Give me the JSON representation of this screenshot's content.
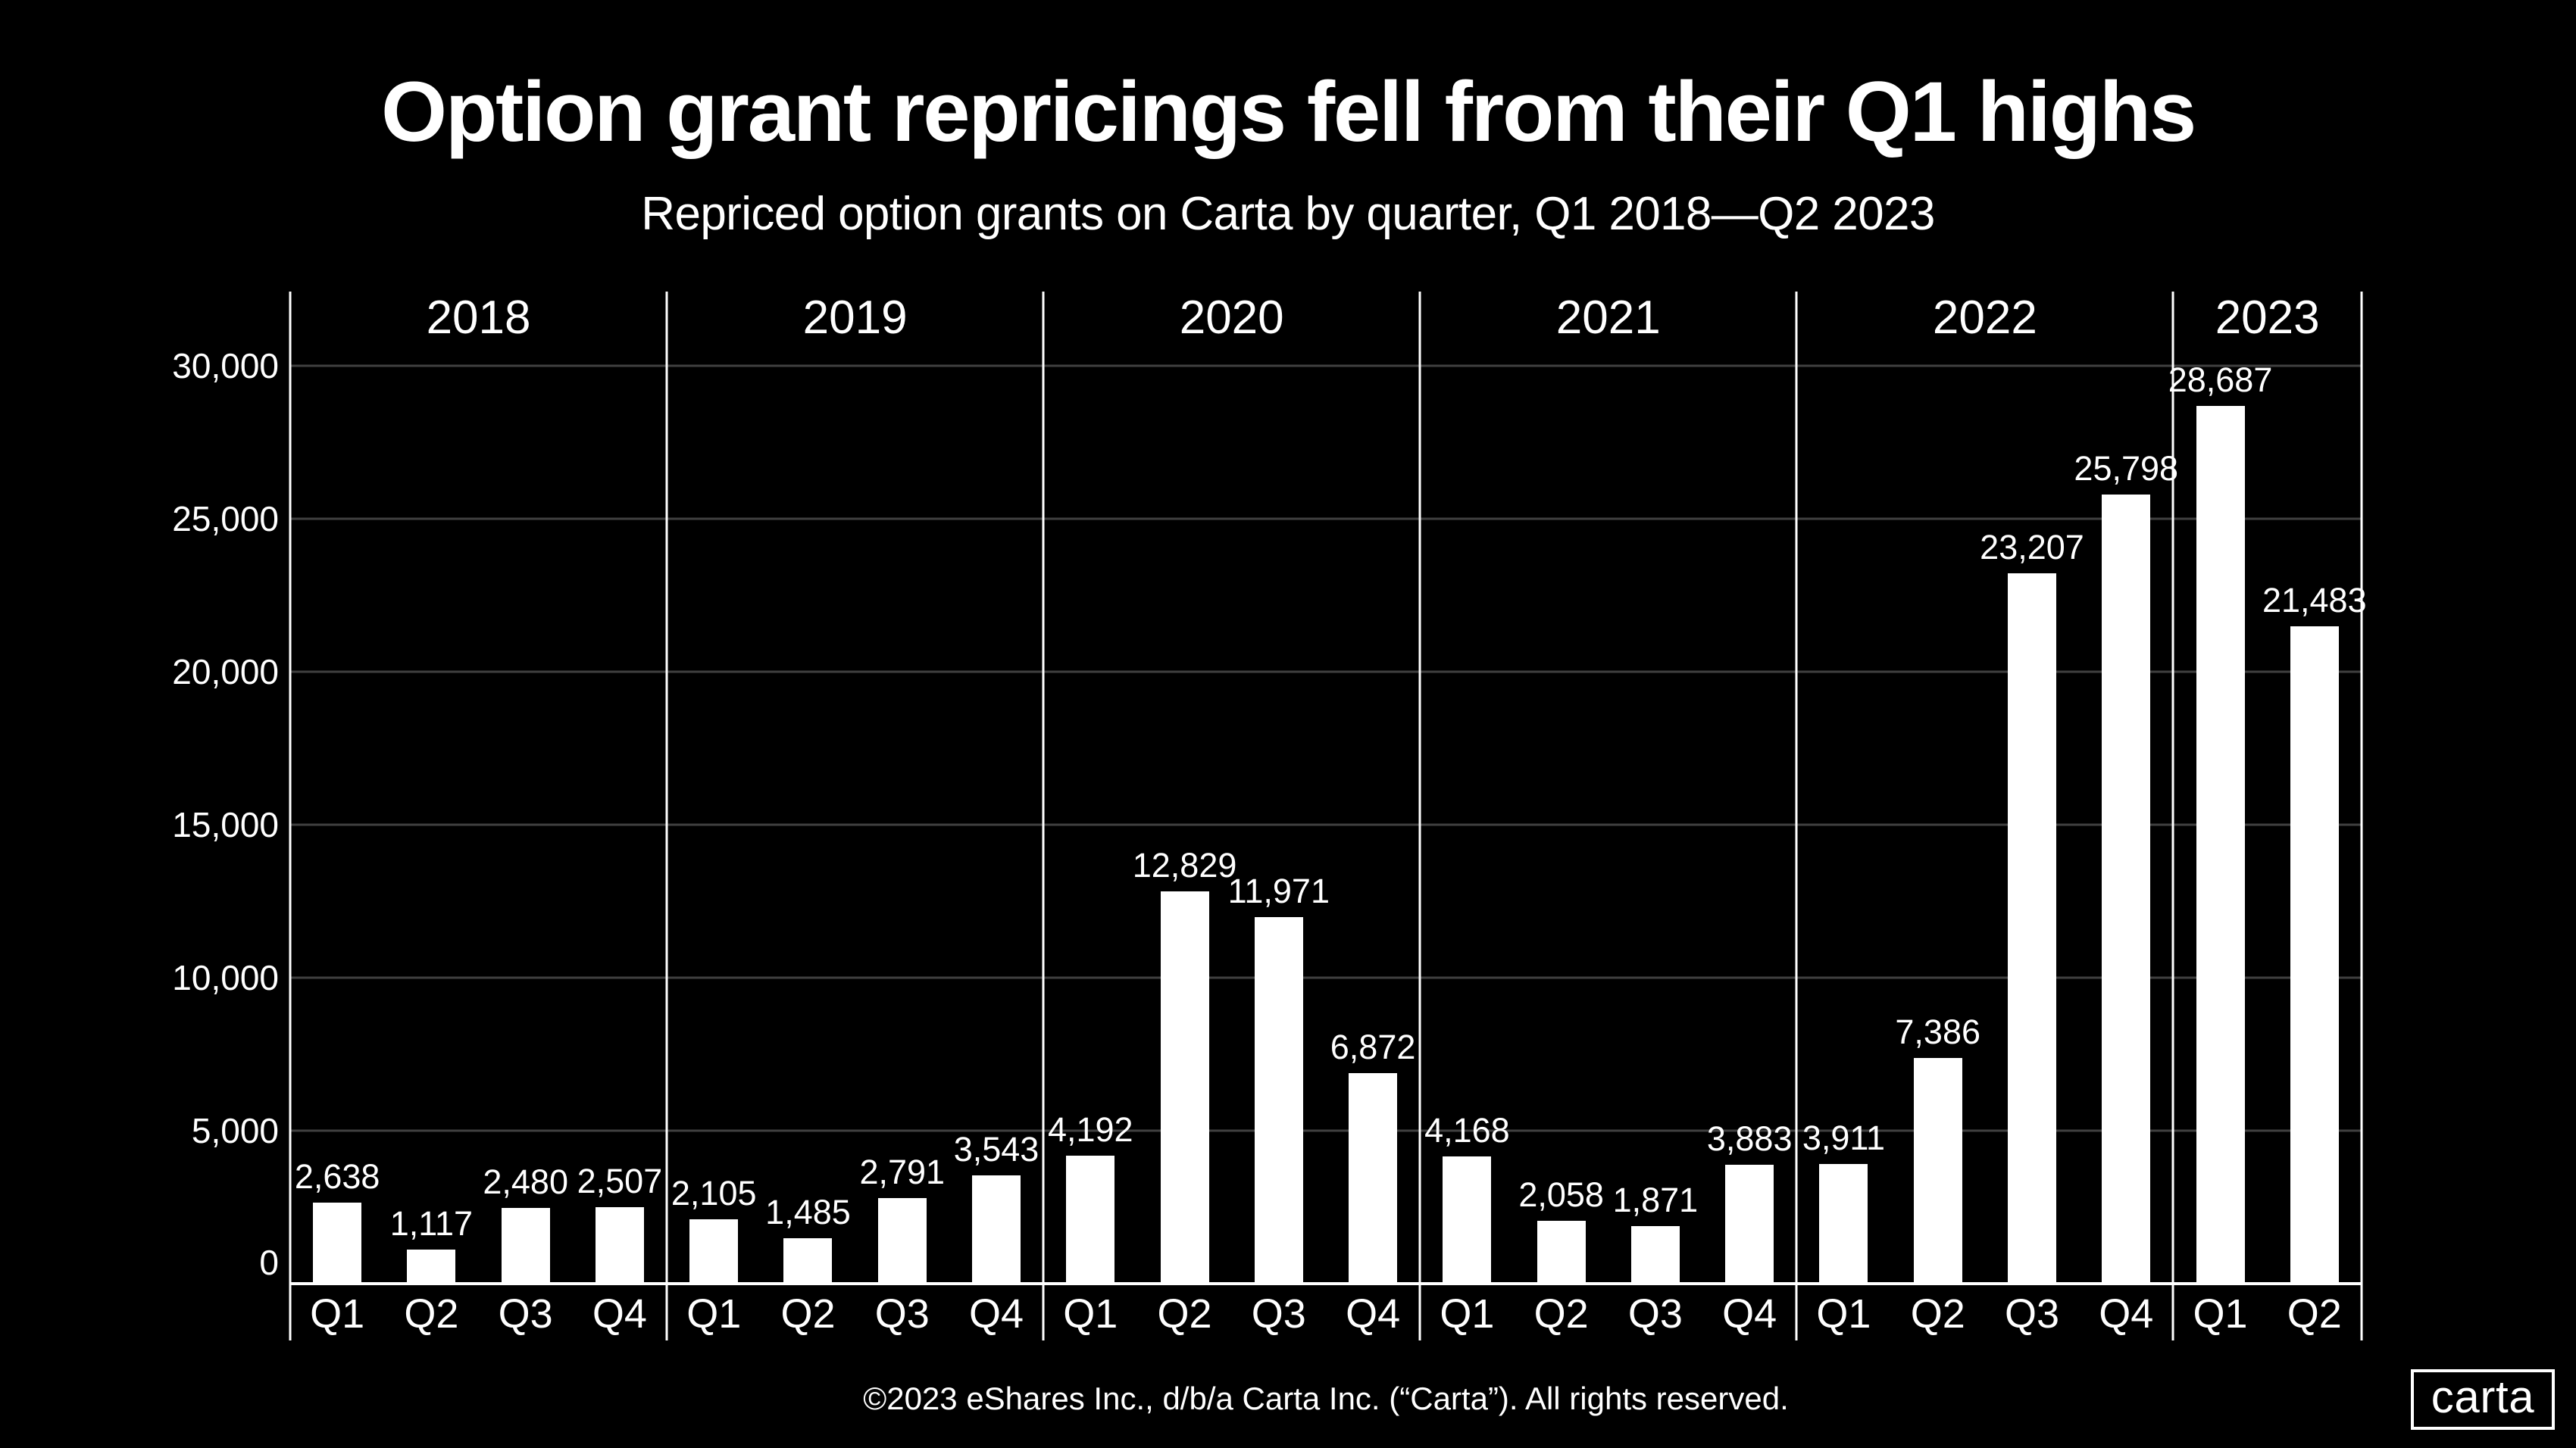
{
  "footer": {
    "text": "©2023 eShares Inc., d/b/a Carta Inc. (“Carta”). All rights reserved."
  },
  "logo": {
    "text": "carta"
  },
  "colors": {
    "background": "#000000",
    "bar": "#ffffff",
    "text": "#ffffff",
    "gridline": "#404040",
    "axis_line": "#ffffff"
  },
  "chart_data": {
    "type": "bar",
    "title": "Option grant repricings fell from their Q1 highs",
    "subtitle": "Repriced option grants on Carta by quarter, Q1 2018—Q2 2023",
    "ylabel": "",
    "xlabel": "",
    "ylim": [
      0,
      32500
    ],
    "grid": true,
    "legend": false,
    "y_axis": {
      "ticks": [
        0,
        5000,
        10000,
        15000,
        20000,
        25000,
        30000
      ],
      "tick_labels": [
        "0",
        "5,000",
        "10,000",
        "15,000",
        "20,000",
        "25,000",
        "30,000"
      ]
    },
    "groups": [
      {
        "year": "2018",
        "categories": [
          "Q1",
          "Q2",
          "Q3",
          "Q4"
        ],
        "values": [
          2638,
          1117,
          2480,
          2507
        ]
      },
      {
        "year": "2019",
        "categories": [
          "Q1",
          "Q2",
          "Q3",
          "Q4"
        ],
        "values": [
          2105,
          1485,
          2791,
          3543
        ]
      },
      {
        "year": "2020",
        "categories": [
          "Q1",
          "Q2",
          "Q3",
          "Q4"
        ],
        "values": [
          4192,
          12829,
          11971,
          6872
        ]
      },
      {
        "year": "2021",
        "categories": [
          "Q1",
          "Q2",
          "Q3",
          "Q4"
        ],
        "values": [
          4168,
          2058,
          1871,
          3883
        ]
      },
      {
        "year": "2022",
        "categories": [
          "Q1",
          "Q2",
          "Q3",
          "Q4"
        ],
        "values": [
          3911,
          7386,
          23207,
          25798
        ]
      },
      {
        "year": "2023",
        "categories": [
          "Q1",
          "Q2"
        ],
        "values": [
          28687,
          21483
        ]
      }
    ]
  }
}
